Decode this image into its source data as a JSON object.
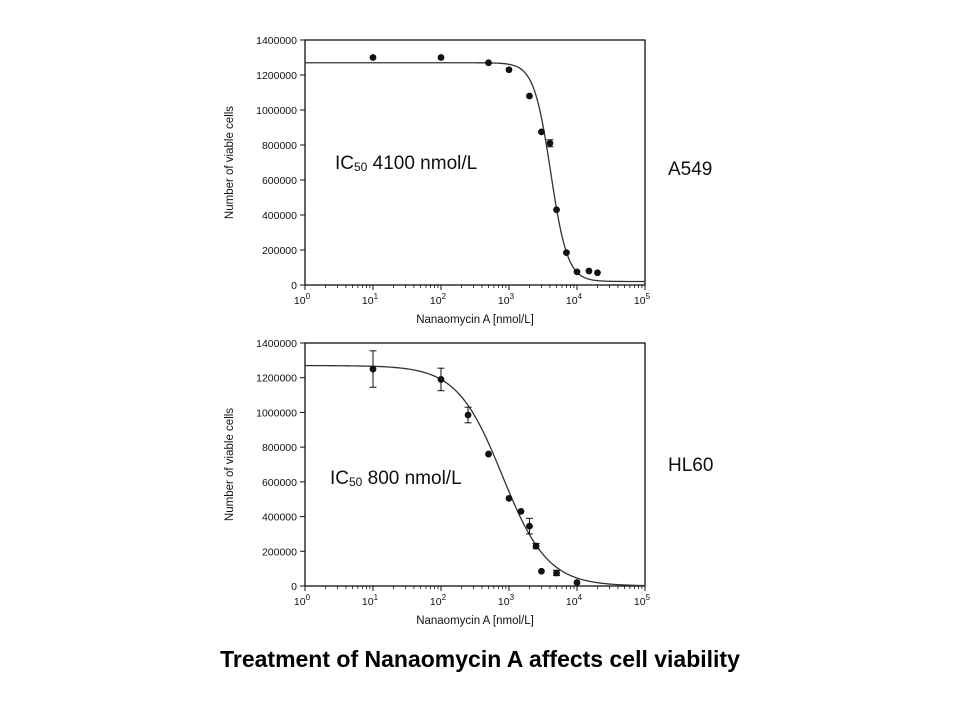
{
  "caption": "Treatment of Nanaomycin A affects cell viability",
  "colors": {
    "ink": "#111111",
    "background": "#ffffff"
  },
  "chart_data": [
    {
      "type": "scatter",
      "panel": "A549",
      "cell_line_label": "A549",
      "annotation": {
        "prefix": "IC",
        "subscript": "50",
        "text": " 4100 nmol/L"
      },
      "xlabel": "Nanaomycin A [nmol/L]",
      "ylabel": "Number of viable cells",
      "xscale": "log",
      "xlim": [
        1,
        100000
      ],
      "ylim": [
        0,
        1400000
      ],
      "x_ticks": [
        {
          "value": 1,
          "base": "10",
          "exp": "0"
        },
        {
          "value": 10,
          "base": "10",
          "exp": "1"
        },
        {
          "value": 100,
          "base": "10",
          "exp": "2"
        },
        {
          "value": 1000,
          "base": "10",
          "exp": "3"
        },
        {
          "value": 10000,
          "base": "10",
          "exp": "4"
        },
        {
          "value": 100000,
          "base": "10",
          "exp": "5"
        }
      ],
      "y_ticks": [
        {
          "value": 0,
          "label": "0"
        },
        {
          "value": 200000,
          "label": "200000"
        },
        {
          "value": 400000,
          "label": "400000"
        },
        {
          "value": 600000,
          "label": "600000"
        },
        {
          "value": 800000,
          "label": "800000"
        },
        {
          "value": 1000000,
          "label": "1000000"
        },
        {
          "value": 1200000,
          "label": "1200000"
        },
        {
          "value": 1400000,
          "label": "1400000"
        }
      ],
      "points": [
        {
          "x": 10,
          "y": 1300000
        },
        {
          "x": 100,
          "y": 1300000
        },
        {
          "x": 500,
          "y": 1270000
        },
        {
          "x": 1000,
          "y": 1230000
        },
        {
          "x": 2000,
          "y": 1080000
        },
        {
          "x": 3000,
          "y": 875000
        },
        {
          "x": 4000,
          "y": 810000,
          "err": 20000
        },
        {
          "x": 5000,
          "y": 430000
        },
        {
          "x": 7000,
          "y": 185000
        },
        {
          "x": 10000,
          "y": 75000
        },
        {
          "x": 15000,
          "y": 80000
        },
        {
          "x": 20000,
          "y": 70000
        }
      ],
      "fit": {
        "top": 1270000,
        "bottom": 20000,
        "ic50": 4100,
        "hill": 3.5
      },
      "grid": false
    },
    {
      "type": "scatter",
      "panel": "HL60",
      "cell_line_label": "HL60",
      "annotation": {
        "prefix": "IC",
        "subscript": "50",
        "text": " 800 nmol/L"
      },
      "xlabel": "Nanaomycin A [nmol/L]",
      "ylabel": "Number of viable cells",
      "xscale": "log",
      "xlim": [
        1,
        100000
      ],
      "ylim": [
        0,
        1400000
      ],
      "x_ticks": [
        {
          "value": 1,
          "base": "10",
          "exp": "0"
        },
        {
          "value": 10,
          "base": "10",
          "exp": "1"
        },
        {
          "value": 100,
          "base": "10",
          "exp": "2"
        },
        {
          "value": 1000,
          "base": "10",
          "exp": "3"
        },
        {
          "value": 10000,
          "base": "10",
          "exp": "4"
        },
        {
          "value": 100000,
          "base": "10",
          "exp": "5"
        }
      ],
      "y_ticks": [
        {
          "value": 0,
          "label": "0"
        },
        {
          "value": 200000,
          "label": "200000"
        },
        {
          "value": 400000,
          "label": "400000"
        },
        {
          "value": 600000,
          "label": "600000"
        },
        {
          "value": 800000,
          "label": "800000"
        },
        {
          "value": 1000000,
          "label": "1000000"
        },
        {
          "value": 1200000,
          "label": "1200000"
        },
        {
          "value": 1400000,
          "label": "1400000"
        }
      ],
      "points": [
        {
          "x": 10,
          "y": 1250000,
          "err": 105000
        },
        {
          "x": 100,
          "y": 1190000,
          "err": 65000
        },
        {
          "x": 250,
          "y": 985000,
          "err": 45000
        },
        {
          "x": 500,
          "y": 760000
        },
        {
          "x": 1000,
          "y": 505000
        },
        {
          "x": 1500,
          "y": 430000
        },
        {
          "x": 2000,
          "y": 345000,
          "err": 45000
        },
        {
          "x": 2500,
          "y": 230000,
          "err": 15000
        },
        {
          "x": 3000,
          "y": 85000
        },
        {
          "x": 5000,
          "y": 75000,
          "err": 15000
        },
        {
          "x": 10000,
          "y": 20000
        }
      ],
      "fit": {
        "top": 1270000,
        "bottom": 0,
        "ic50": 800,
        "hill": 1.3
      },
      "grid": false
    }
  ]
}
